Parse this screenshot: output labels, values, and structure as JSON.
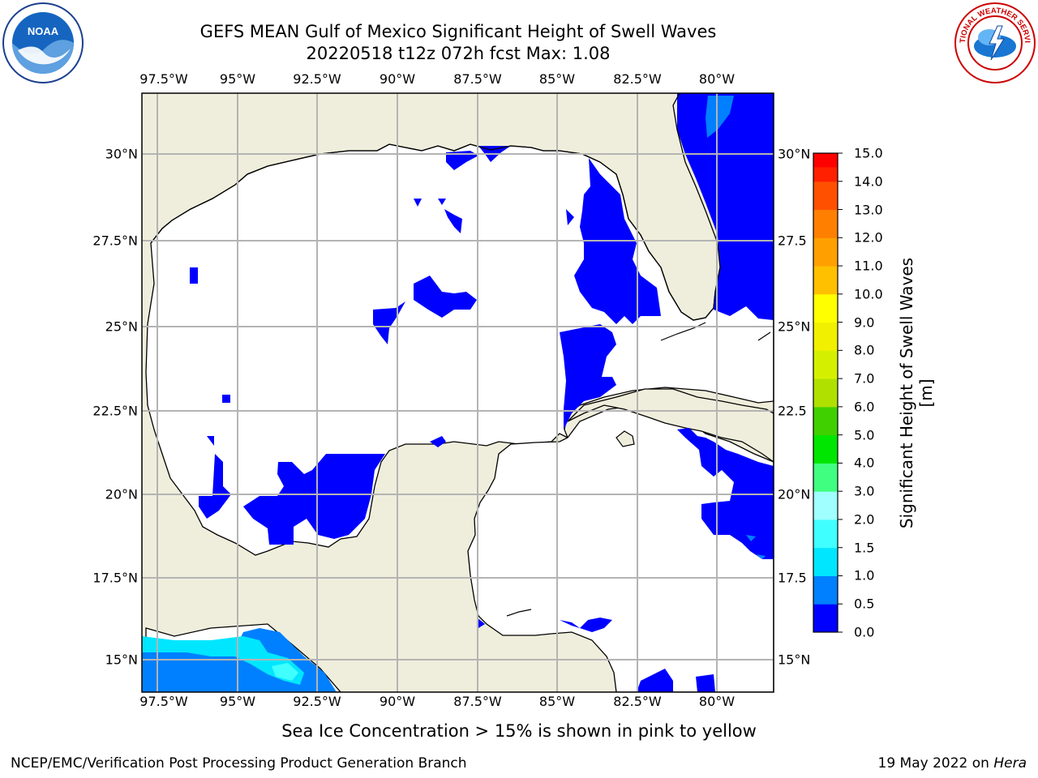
{
  "header": {
    "title_line1": "GEFS MEAN Gulf of Mexico Significant Height of Swell Waves",
    "title_line2": "20220518 t12z 072h fcst   Max: 1.08"
  },
  "map": {
    "lon_ticks": [
      "97.5°W",
      "95°W",
      "92.5°W",
      "90°W",
      "87.5°W",
      "85°W",
      "82.5°W",
      "80°W"
    ],
    "lat_ticks": [
      "30°N",
      "27.5°N",
      "25°N",
      "22.5°N",
      "20°N",
      "17.5°N",
      "15°N"
    ],
    "lat_ticks_right": [
      "30°N",
      "27.5",
      "25°N",
      "22.5",
      "20°N",
      "17.5",
      "15°N"
    ],
    "colors": {
      "land": "#efeedc",
      "ocean": "#ffffff",
      "grid": "#b4b4b4",
      "coast": "#000000"
    }
  },
  "colorbar": {
    "label": "Significant Height of Swell Waves [m]",
    "tick_labels": [
      "15.0",
      "14.0",
      "13.0",
      "12.0",
      "11.0",
      "10.0",
      "9.0",
      "8.0",
      "7.0",
      "6.0",
      "5.0",
      "4.0",
      "3.0",
      "2.0",
      "1.5",
      "1.0",
      "0.5",
      "0.0"
    ],
    "bands": [
      {
        "from": "0.0",
        "to": "0.5",
        "color": "#0000ff"
      },
      {
        "from": "0.5",
        "to": "1.0",
        "color": "#0080ff"
      },
      {
        "from": "1.0",
        "to": "1.5",
        "color": "#00e6ff"
      },
      {
        "from": "1.5",
        "to": "2.0",
        "color": "#40ffff"
      },
      {
        "from": "2.0",
        "to": "3.0",
        "color": "#a0ffff"
      },
      {
        "from": "3.0",
        "to": "4.0",
        "color": "#40ff80"
      },
      {
        "from": "4.0",
        "to": "5.0",
        "color": "#00e600"
      },
      {
        "from": "5.0",
        "to": "6.0",
        "color": "#40d000"
      },
      {
        "from": "6.0",
        "to": "7.0",
        "color": "#b0e000"
      },
      {
        "from": "7.0",
        "to": "8.0",
        "color": "#d4f000"
      },
      {
        "from": "8.0",
        "to": "9.0",
        "color": "#f0f000"
      },
      {
        "from": "9.0",
        "to": "10.0",
        "color": "#ffff00"
      },
      {
        "from": "10.0",
        "to": "11.0",
        "color": "#ffc000"
      },
      {
        "from": "11.0",
        "to": "12.0",
        "color": "#ffa000"
      },
      {
        "from": "12.0",
        "to": "13.0",
        "color": "#ff8000"
      },
      {
        "from": "13.0",
        "to": "14.0",
        "color": "#ff5000"
      },
      {
        "from": "14.0",
        "to": "15.0",
        "color": "#ff2000"
      },
      {
        "from": "15.0",
        "to": "",
        "color": "#ff0000"
      }
    ]
  },
  "notes": {
    "sea_ice": "Sea Ice Concentration > 15% is shown in pink to yellow",
    "footer_left": "NCEP/EMC/Verification Post Processing Product Generation Branch",
    "footer_date": "19 May 2022 on ",
    "footer_host": "Hera"
  },
  "logos": {
    "noaa_text": "NOAA",
    "nws_text": "NATIONAL WEATHER SERVICE"
  }
}
